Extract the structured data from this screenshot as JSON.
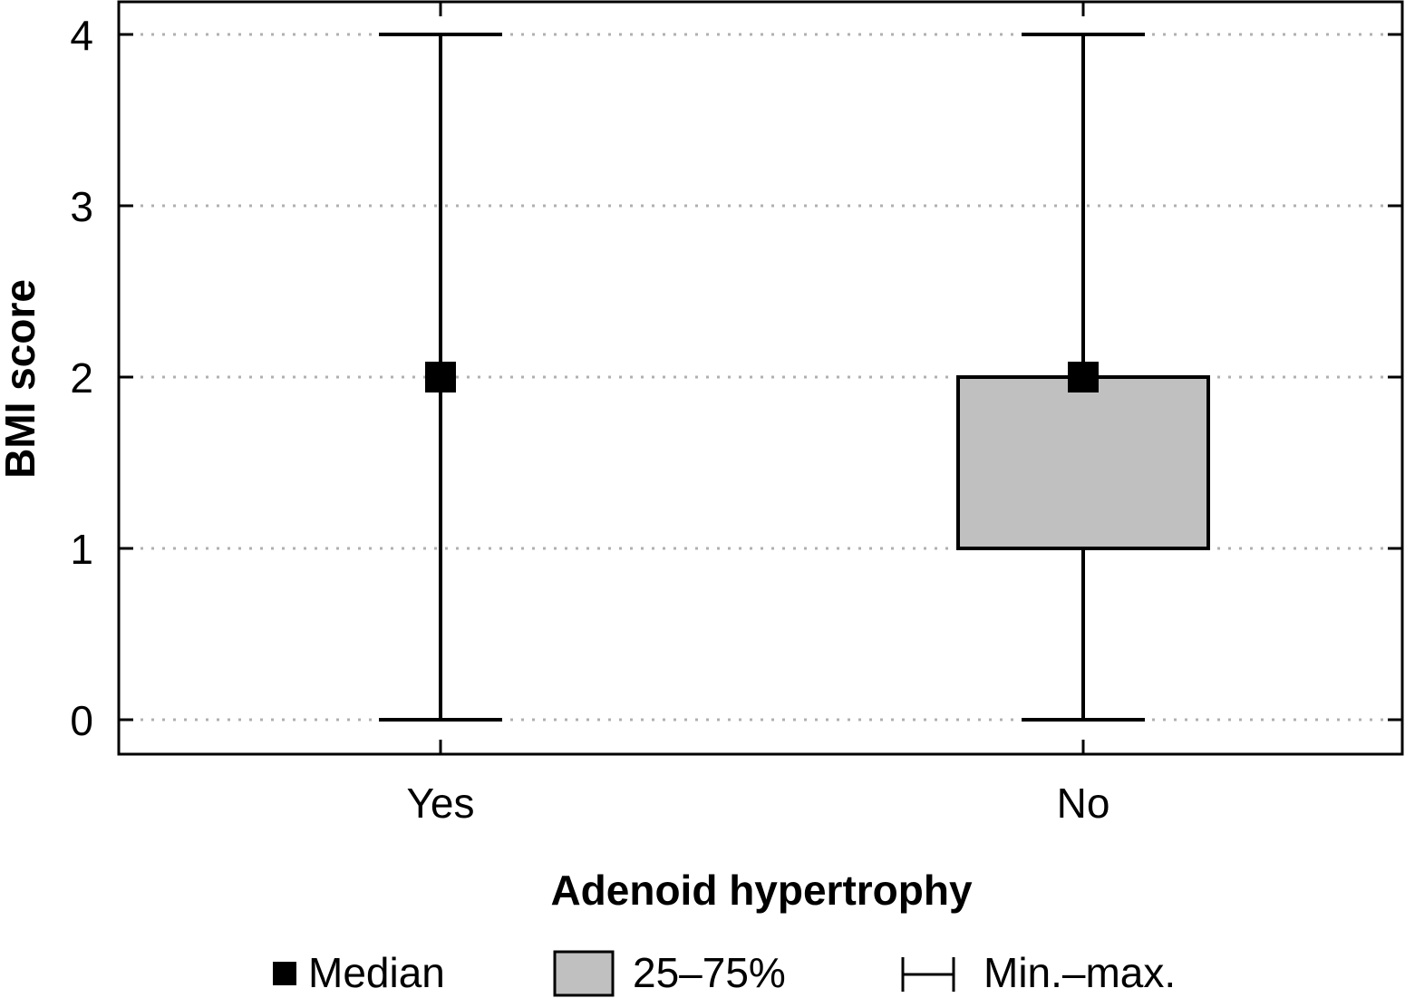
{
  "chart_data": {
    "type": "box",
    "categories": [
      "Yes",
      "No"
    ],
    "boxes": [
      {
        "category": "Yes",
        "min": 0,
        "q1": 2,
        "median": 2,
        "q3": 2,
        "max": 4
      },
      {
        "category": "No",
        "min": 0,
        "q1": 1,
        "median": 2,
        "q3": 2,
        "max": 4
      }
    ],
    "xlabel": "Adenoid hypertrophy",
    "ylabel": "BMI score",
    "ylim": [
      -0.2,
      4.2
    ],
    "yticks": [
      0,
      1,
      2,
      3,
      4
    ],
    "grid": "dotted horizontal",
    "legend": {
      "position": "bottom",
      "items": [
        {
          "name": "median",
          "label": "Median"
        },
        {
          "name": "iqr",
          "label": "25–75%"
        },
        {
          "name": "range",
          "label": "Min.–max."
        }
      ]
    },
    "colors": {
      "box_fill": "#c0c0c0",
      "line": "#000000",
      "grid": "#b0b0b0"
    }
  }
}
